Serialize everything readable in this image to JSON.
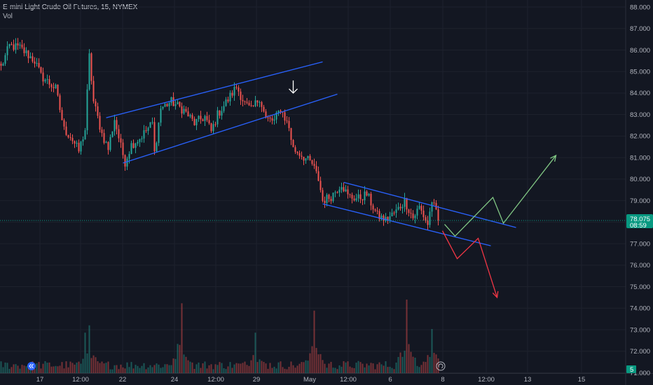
{
  "header": {
    "symbol": "E-mini Light Crude Oil Futures, 15, NYMEX",
    "volume_label": "Vol"
  },
  "colors": {
    "background": "#131722",
    "up": "#26a69a",
    "down": "#ef5350",
    "channel": "#2962ff",
    "bull_path": "#81c784",
    "bear_path": "#f23645",
    "arrow": "#ffffff",
    "price_badge": "#089981"
  },
  "price_badge": {
    "price": "78.075",
    "countdown": "08:59"
  },
  "volume_badge": "5",
  "icons": {
    "scroll_left": "chevron-double-left-icon",
    "reset": "reset-icon"
  },
  "chart_data": {
    "type": "candlestick",
    "title": "E-mini Light Crude Oil Futures, 15, NYMEX",
    "y_axis": {
      "position": "right",
      "ticks": [
        "88.000",
        "87.000",
        "86.000",
        "85.000",
        "84.000",
        "83.000",
        "82.000",
        "81.000",
        "80.000",
        "79.000",
        "78.000",
        "77.000",
        "76.000",
        "75.000",
        "74.000",
        "73.000",
        "72.000",
        "71.000"
      ],
      "range": [
        70.7,
        88.2
      ]
    },
    "x_axis": {
      "ticks": [
        "17",
        "12:00",
        "22",
        "24",
        "12:00",
        "29",
        "May",
        "12:00",
        "6",
        "8",
        "12:00",
        "13",
        "15"
      ]
    },
    "last_price": 78.075,
    "price_path": [
      [
        0,
        85.2
      ],
      [
        4,
        86.2
      ],
      [
        9,
        86.1
      ],
      [
        16,
        85.5
      ],
      [
        19,
        84.8
      ],
      [
        26,
        84.2
      ],
      [
        30,
        82.3
      ],
      [
        33,
        82.0
      ],
      [
        37,
        81.3
      ],
      [
        40,
        82.3
      ],
      [
        42,
        85.7
      ],
      [
        44,
        83.6
      ],
      [
        48,
        82.1
      ],
      [
        51,
        81.4
      ],
      [
        54,
        82.8
      ],
      [
        57,
        81.5
      ],
      [
        59,
        80.8
      ],
      [
        62,
        81.6
      ],
      [
        66,
        81.9
      ],
      [
        72,
        82.6
      ],
      [
        73,
        81.2
      ],
      [
        76,
        83.3
      ],
      [
        81,
        83.6
      ],
      [
        87,
        83.2
      ],
      [
        92,
        82.6
      ],
      [
        97,
        82.9
      ],
      [
        100,
        82.2
      ],
      [
        103,
        83.0
      ],
      [
        108,
        83.7
      ],
      [
        112,
        84.3
      ],
      [
        116,
        83.5
      ],
      [
        119,
        83.2
      ],
      [
        123,
        83.8
      ],
      [
        126,
        82.8
      ],
      [
        130,
        82.7
      ],
      [
        133,
        83.3
      ],
      [
        137,
        82.4
      ],
      [
        139,
        81.4
      ],
      [
        142,
        81.2
      ],
      [
        148,
        80.7
      ],
      [
        151,
        80.0
      ],
      [
        153,
        79.0
      ],
      [
        157,
        79.2
      ],
      [
        162,
        79.8
      ],
      [
        165,
        79.2
      ],
      [
        170,
        79.1
      ],
      [
        174,
        79.3
      ],
      [
        176,
        78.9
      ],
      [
        179,
        78.3
      ],
      [
        183,
        78.1
      ],
      [
        188,
        78.5
      ],
      [
        192,
        79.0
      ],
      [
        196,
        78.2
      ],
      [
        199,
        78.7
      ],
      [
        203,
        77.9
      ],
      [
        205,
        79.0
      ],
      [
        208,
        78.1
      ]
    ],
    "volume": {
      "label": "Vol",
      "last": 5,
      "spikes": [
        [
          40,
          0.55
        ],
        [
          42,
          0.65
        ],
        [
          86,
          0.95
        ],
        [
          121,
          0.55
        ],
        [
          149,
          0.85
        ],
        [
          193,
          1.0
        ],
        [
          205,
          0.6
        ]
      ]
    },
    "drawings": {
      "upper_channel": {
        "top_line": [
          [
            50,
            82.85
          ],
          [
            153,
            85.45
          ]
        ],
        "bottom_line": [
          [
            58,
            80.75
          ],
          [
            160,
            83.95
          ]
        ]
      },
      "lower_channel": {
        "top_line": [
          [
            163,
            79.85
          ],
          [
            245,
            77.75
          ]
        ],
        "bottom_line": [
          [
            153,
            78.85
          ],
          [
            233,
            76.9
          ]
        ]
      },
      "down_arrow": {
        "x": 139,
        "price": 84.0
      },
      "bullish_path": [
        [
          211,
          77.9
        ],
        [
          216,
          77.35
        ],
        [
          234,
          79.15
        ],
        [
          239,
          77.95
        ],
        [
          264,
          81.1
        ]
      ],
      "bearish_path": [
        [
          210,
          77.6
        ],
        [
          217,
          76.3
        ],
        [
          227,
          77.25
        ],
        [
          236,
          74.5
        ]
      ]
    }
  }
}
